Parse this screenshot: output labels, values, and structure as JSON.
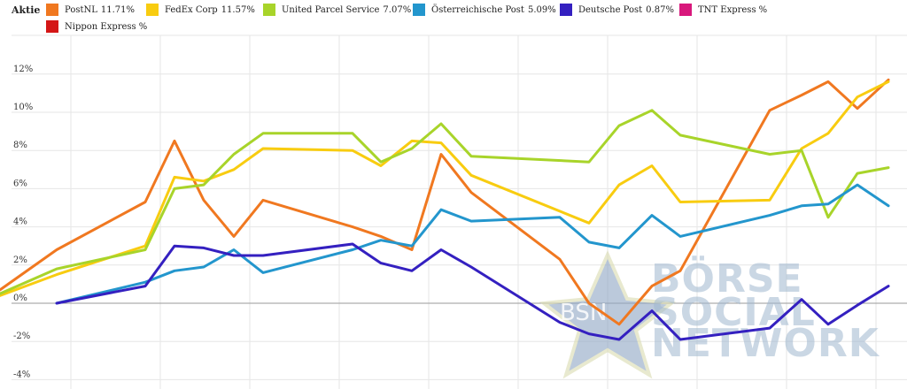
{
  "legend": {
    "title": "Aktie",
    "items": [
      {
        "label": "PostNL",
        "value": "11.71",
        "suffix": "%",
        "color": "#f07820"
      },
      {
        "label": "FedEx Corp",
        "value": "11.57",
        "suffix": "%",
        "color": "#f8cc10"
      },
      {
        "label": "United Parcel Service",
        "value": "7.07",
        "suffix": "%",
        "color": "#a8d42a"
      },
      {
        "label": "Österreichische Post",
        "value": "5.09",
        "suffix": "%",
        "color": "#2396cd"
      },
      {
        "label": "Deutsche Post",
        "value": "0.87",
        "suffix": "%",
        "color": "#3420c0"
      },
      {
        "label": "TNT Express",
        "value": "",
        "suffix": "%",
        "color": "#d8187c"
      },
      {
        "label": "Nippon Express",
        "value": "",
        "suffix": "%",
        "color": "#d41616"
      }
    ]
  },
  "watermark": {
    "logo_text": "BSN",
    "line1": "BÖRSE",
    "line2": "SOCIAL",
    "line3": "NETWORK"
  },
  "chart_data": {
    "type": "line",
    "y_ticks": [
      "12%",
      "10%",
      "8%",
      "6%",
      "4%",
      "2%",
      "0%",
      "-2%",
      "-4%"
    ],
    "y_values": [
      12,
      10,
      8,
      6,
      4,
      2,
      0,
      -2,
      -4
    ],
    "ylim": [
      -4,
      14
    ],
    "grid": true,
    "legend_position": "top",
    "series": [
      {
        "name": "PostNL",
        "color": "#f07820",
        "points": [
          [
            0,
            0.7
          ],
          [
            64,
            2.8
          ],
          [
            164,
            5.3
          ],
          [
            197,
            8.5
          ],
          [
            230,
            5.4
          ],
          [
            264,
            3.5
          ],
          [
            297,
            5.4
          ],
          [
            398,
            4.0
          ],
          [
            430,
            3.5
          ],
          [
            465,
            2.8
          ],
          [
            498,
            7.8
          ],
          [
            532,
            5.8
          ],
          [
            632,
            2.3
          ],
          [
            665,
            0.0
          ],
          [
            699,
            -1.1
          ],
          [
            736,
            0.9
          ],
          [
            768,
            1.7
          ],
          [
            869,
            10.1
          ],
          [
            905,
            10.9
          ],
          [
            935,
            11.6
          ],
          [
            968,
            10.2
          ],
          [
            1003,
            11.7
          ]
        ]
      },
      {
        "name": "FedEx Corp",
        "color": "#f8cc10",
        "points": [
          [
            0,
            0.4
          ],
          [
            64,
            1.5
          ],
          [
            164,
            3.0
          ],
          [
            197,
            6.6
          ],
          [
            230,
            6.4
          ],
          [
            264,
            7.0
          ],
          [
            297,
            8.1
          ],
          [
            398,
            8.0
          ],
          [
            430,
            7.2
          ],
          [
            465,
            8.5
          ],
          [
            498,
            8.4
          ],
          [
            532,
            6.7
          ],
          [
            665,
            4.2
          ],
          [
            699,
            6.2
          ],
          [
            736,
            7.2
          ],
          [
            768,
            5.3
          ],
          [
            869,
            5.4
          ],
          [
            905,
            8.1
          ],
          [
            935,
            8.9
          ],
          [
            968,
            10.8
          ],
          [
            1003,
            11.6
          ]
        ]
      },
      {
        "name": "United Parcel Service",
        "color": "#a8d42a",
        "points": [
          [
            0,
            0.5
          ],
          [
            64,
            1.8
          ],
          [
            164,
            2.8
          ],
          [
            197,
            6.0
          ],
          [
            230,
            6.2
          ],
          [
            264,
            7.8
          ],
          [
            297,
            8.9
          ],
          [
            398,
            8.9
          ],
          [
            430,
            7.4
          ],
          [
            465,
            8.1
          ],
          [
            498,
            9.4
          ],
          [
            532,
            7.7
          ],
          [
            665,
            7.4
          ],
          [
            699,
            9.3
          ],
          [
            736,
            10.1
          ],
          [
            768,
            8.8
          ],
          [
            869,
            7.8
          ],
          [
            905,
            8.0
          ],
          [
            935,
            4.5
          ],
          [
            968,
            6.8
          ],
          [
            1003,
            7.1
          ]
        ]
      },
      {
        "name": "Österreichische Post",
        "color": "#2396cd",
        "points": [
          [
            64,
            0.0
          ],
          [
            164,
            1.1
          ],
          [
            197,
            1.7
          ],
          [
            230,
            1.9
          ],
          [
            264,
            2.8
          ],
          [
            297,
            1.6
          ],
          [
            398,
            2.8
          ],
          [
            430,
            3.3
          ],
          [
            465,
            3.0
          ],
          [
            498,
            4.9
          ],
          [
            532,
            4.3
          ],
          [
            632,
            4.5
          ],
          [
            665,
            3.2
          ],
          [
            699,
            2.9
          ],
          [
            736,
            4.6
          ],
          [
            768,
            3.5
          ],
          [
            869,
            4.6
          ],
          [
            905,
            5.1
          ],
          [
            935,
            5.2
          ],
          [
            968,
            6.2
          ],
          [
            1003,
            5.1
          ]
        ]
      },
      {
        "name": "Deutsche Post",
        "color": "#3420c0",
        "points": [
          [
            64,
            0.0
          ],
          [
            164,
            0.9
          ],
          [
            197,
            3.0
          ],
          [
            230,
            2.9
          ],
          [
            264,
            2.5
          ],
          [
            297,
            2.5
          ],
          [
            398,
            3.1
          ],
          [
            430,
            2.1
          ],
          [
            465,
            1.7
          ],
          [
            498,
            2.8
          ],
          [
            532,
            1.9
          ],
          [
            632,
            -1.0
          ],
          [
            665,
            -1.6
          ],
          [
            699,
            -1.9
          ],
          [
            736,
            -0.4
          ],
          [
            768,
            -1.9
          ],
          [
            869,
            -1.3
          ],
          [
            905,
            0.2
          ],
          [
            935,
            -1.1
          ],
          [
            968,
            -0.1
          ],
          [
            1003,
            0.9
          ]
        ]
      }
    ]
  }
}
